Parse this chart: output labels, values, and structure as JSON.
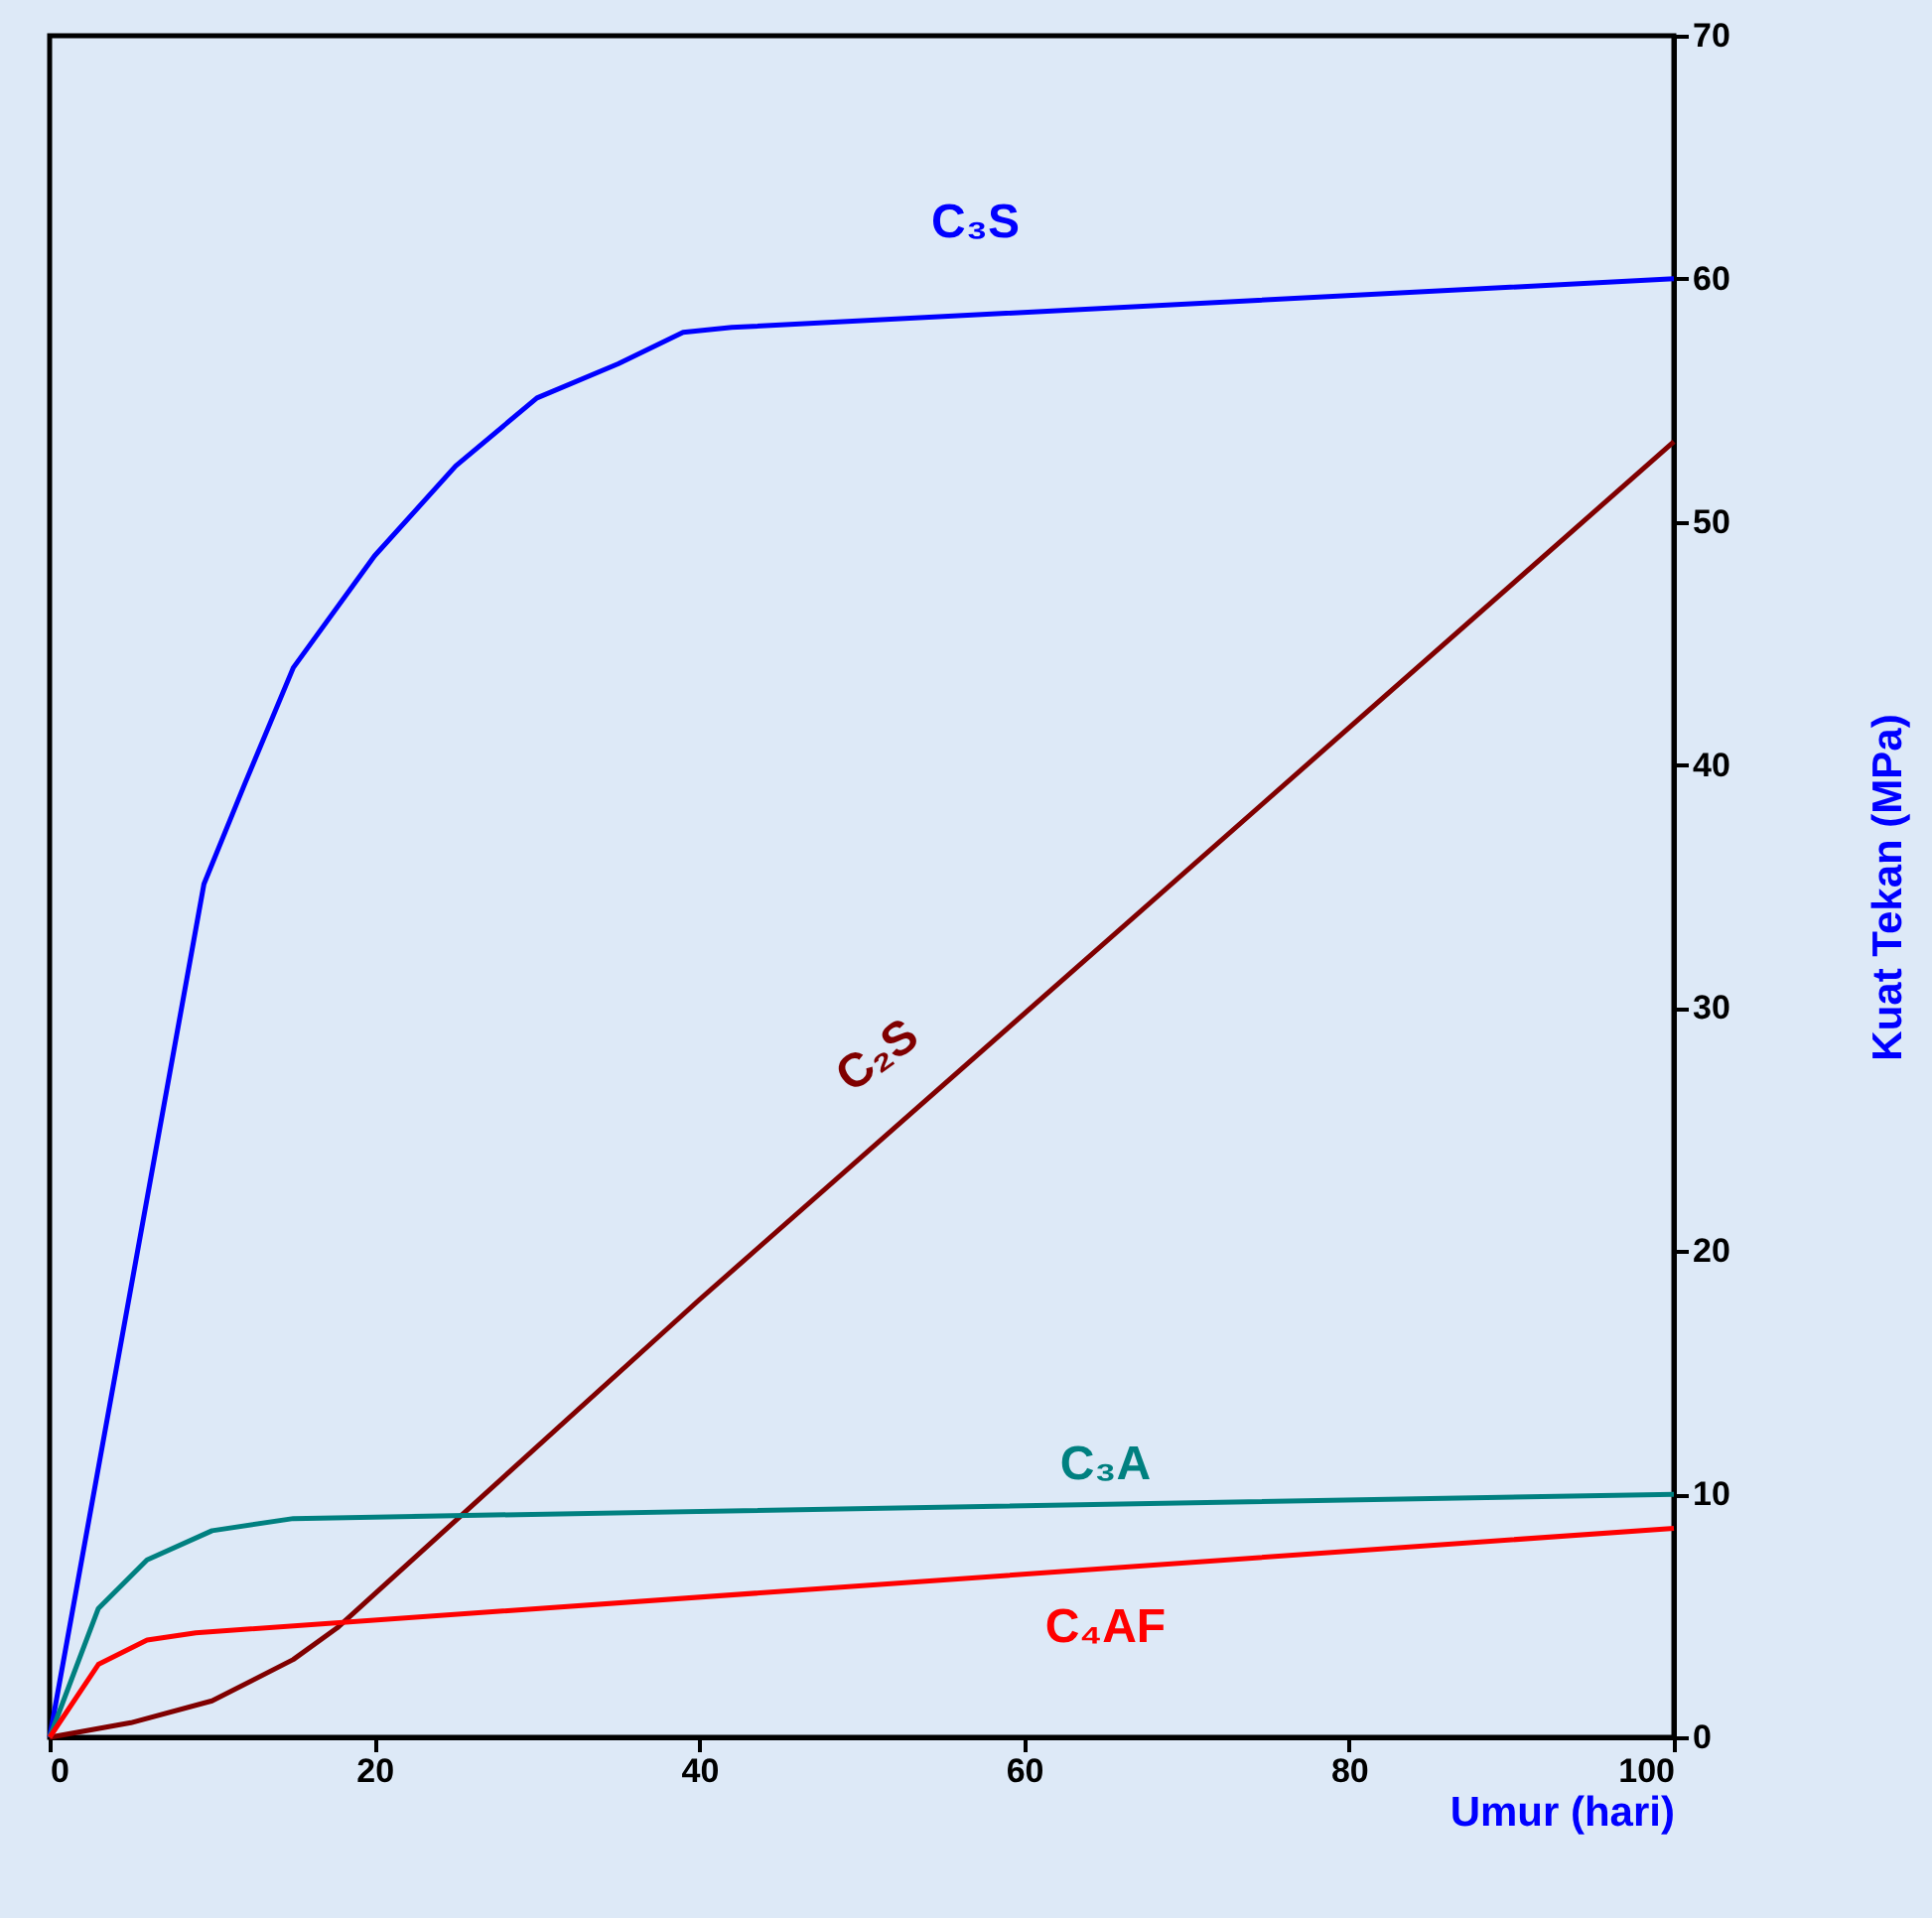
{
  "chart_data": {
    "type": "line",
    "xlabel": "Umur (hari)",
    "ylabel": "Kuat Tekan (MPa)",
    "xlim": [
      0,
      100
    ],
    "xticks": [
      0,
      20,
      40,
      60,
      80,
      100
    ],
    "ylim": [
      0,
      70
    ],
    "yticks": [
      0,
      10,
      20,
      30,
      40,
      50,
      60,
      70
    ],
    "grid": false,
    "marker": "none",
    "line_style": "solid",
    "series": [
      {
        "name": "C₃S",
        "color": "#0000ff",
        "x": [
          0,
          9.5,
          12,
          15,
          20,
          25,
          30,
          35,
          39,
          42,
          100
        ],
        "values": [
          0,
          35.1,
          39.2,
          44,
          48.6,
          52.3,
          55.1,
          56.5,
          57.8,
          58,
          60
        ]
      },
      {
        "name": "C₂S",
        "color": "#800000",
        "x": [
          0,
          5,
          10,
          15,
          17.7,
          40,
          100
        ],
        "values": [
          0,
          0.6,
          1.5,
          3.2,
          4.5,
          18,
          53.3
        ]
      },
      {
        "name": "C₃A",
        "color": "#008080",
        "x": [
          0,
          3,
          6,
          10,
          15,
          100
        ],
        "values": [
          0,
          5.3,
          7.3,
          8.5,
          9,
          10
        ]
      },
      {
        "name": "C₄AF",
        "color": "#ff0000",
        "x": [
          0,
          3,
          6,
          9,
          100
        ],
        "values": [
          0,
          3,
          4,
          4.3,
          8.6
        ]
      }
    ]
  }
}
